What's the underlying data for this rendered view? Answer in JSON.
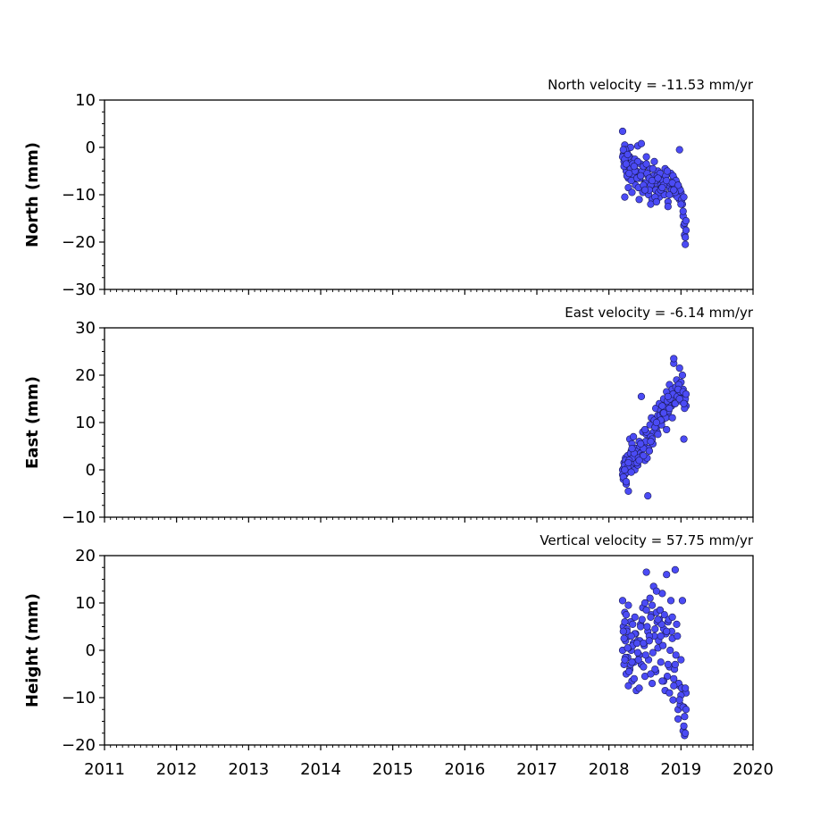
{
  "colors": {
    "marker": "#4b4bf5",
    "marker_edge": "#1a1a55",
    "axes": "#000000",
    "background": "#ffffff"
  },
  "chart_data": [
    {
      "type": "scatter",
      "title": "North velocity = -11.53 mm/yr",
      "xlabel": "",
      "ylabel": "North (mm)",
      "xlim": [
        2011,
        2020
      ],
      "ylim": [
        -30,
        10
      ],
      "yticks": [
        -30,
        -20,
        -10,
        0,
        10
      ],
      "xticks": [
        2011,
        2012,
        2013,
        2014,
        2015,
        2016,
        2017,
        2018,
        2019,
        2020
      ],
      "show_xticklabels": false,
      "velocity_mm_per_yr": -11.53,
      "series": [
        {
          "x": [
            2018.19,
            2018.2,
            2018.21,
            2018.22,
            2018.23,
            2018.24,
            2018.25,
            2018.26,
            2018.27,
            2018.28,
            2018.29,
            2018.3,
            2018.31,
            2018.32,
            2018.33,
            2018.34,
            2018.35,
            2018.36,
            2018.37,
            2018.38,
            2018.4,
            2018.42,
            2018.44,
            2018.45,
            2018.47,
            2018.49,
            2018.5,
            2018.52,
            2018.54,
            2018.55,
            2018.57,
            2018.59,
            2018.6,
            2018.62,
            2018.63,
            2018.65,
            2018.66,
            2018.68,
            2018.7,
            2018.72,
            2018.74,
            2018.76,
            2018.78,
            2018.8,
            2018.82,
            2018.84,
            2018.86,
            2018.88,
            2018.9,
            2018.92,
            2018.94,
            2018.96,
            2018.98,
            2019.0,
            2019.02,
            2019.03,
            2019.04,
            2019.05,
            2019.06,
            2019.07,
            2018.19,
            2018.21,
            2018.23,
            2018.25,
            2018.27,
            2018.3,
            2018.33,
            2018.36,
            2018.4,
            2018.43,
            2018.46,
            2018.48,
            2018.51,
            2018.53,
            2018.56,
            2018.58,
            2018.61,
            2018.64,
            2018.67,
            2018.69,
            2018.71,
            2018.73,
            2018.75,
            2018.77,
            2018.79,
            2018.81,
            2018.83,
            2018.85,
            2018.87,
            2018.89,
            2018.91,
            2018.93,
            2018.95,
            2018.97,
            2018.99,
            2019.01,
            2018.2,
            2018.22,
            2018.24,
            2018.26,
            2018.28,
            2018.31,
            2018.35,
            2018.39,
            2018.41,
            2018.44,
            2018.48,
            2018.52,
            2018.56,
            2018.6,
            2018.64,
            2018.68,
            2018.72,
            2018.76,
            2018.8,
            2018.84,
            2018.88,
            2018.92,
            2018.96,
            2019.0,
            2019.03,
            2019.05,
            2019.06,
            2019.07,
            2018.22,
            2018.27,
            2018.32,
            2018.42,
            2018.5,
            2018.58,
            2018.66,
            2018.74,
            2018.82,
            2018.9,
            2018.98,
            2019.04
          ],
          "y": [
            3.4,
            -1.5,
            -3.0,
            0.5,
            -2.5,
            -5.0,
            -1.0,
            -4.0,
            -6.5,
            -3.5,
            -2.0,
            0.0,
            -5.5,
            -3.0,
            -7.0,
            -4.5,
            -6.0,
            -2.5,
            -8.0,
            -5.0,
            0.3,
            -6.5,
            -3.5,
            0.8,
            -9.5,
            -4.0,
            -7.5,
            -2.0,
            -6.0,
            -10.0,
            -4.5,
            -8.5,
            -11.0,
            -6.0,
            -3.0,
            -9.0,
            -7.5,
            -5.0,
            -10.5,
            -8.0,
            -6.5,
            -9.5,
            -4.5,
            -7.0,
            -11.5,
            -8.5,
            -5.5,
            -9.0,
            -6.5,
            -10.0,
            -7.5,
            -8.0,
            -11.0,
            -9.5,
            -12.0,
            -14.5,
            -16.5,
            -18.5,
            -20.5,
            -17.5,
            -2.0,
            -4.0,
            -0.5,
            -6.0,
            -2.0,
            -4.5,
            -3.5,
            -5.0,
            -3.0,
            -6.5,
            -5.0,
            -4.0,
            -7.5,
            -5.5,
            -6.5,
            -8.0,
            -4.5,
            -7.0,
            -6.0,
            -9.5,
            -5.5,
            -8.5,
            -7.0,
            -10.0,
            -6.0,
            -5.0,
            -8.0,
            -7.5,
            -9.0,
            -6.0,
            -8.5,
            -7.0,
            -10.5,
            -8.5,
            -9.0,
            -11.0,
            -0.5,
            -2.5,
            -3.5,
            -1.5,
            -5.5,
            -7.0,
            -4.0,
            -6.5,
            -8.5,
            -6.0,
            -8.0,
            -3.5,
            -9.0,
            -7.0,
            -10.5,
            -6.5,
            -9.0,
            -8.0,
            -7.0,
            -10.0,
            -7.5,
            -9.5,
            -8.0,
            -12.0,
            -13.5,
            -16.0,
            -19.0,
            -15.5,
            -10.5,
            -8.5,
            -9.5,
            -11.0,
            -9.0,
            -12.0,
            -11.5,
            -8.5,
            -12.5,
            -9.0,
            -0.5,
            -10.5
          ]
        }
      ]
    },
    {
      "type": "scatter",
      "title": "East velocity = -6.14 mm/yr",
      "xlabel": "",
      "ylabel": "East (mm)",
      "xlim": [
        2011,
        2020
      ],
      "ylim": [
        -10,
        30
      ],
      "yticks": [
        -10,
        0,
        10,
        20,
        30
      ],
      "xticks": [
        2011,
        2012,
        2013,
        2014,
        2015,
        2016,
        2017,
        2018,
        2019,
        2020
      ],
      "show_xticklabels": false,
      "velocity_mm_per_yr": -6.14,
      "series": [
        {
          "x": [
            2018.19,
            2018.2,
            2018.21,
            2018.22,
            2018.23,
            2018.24,
            2018.25,
            2018.26,
            2018.27,
            2018.28,
            2018.29,
            2018.3,
            2018.31,
            2018.32,
            2018.33,
            2018.34,
            2018.35,
            2018.36,
            2018.37,
            2018.38,
            2018.4,
            2018.42,
            2018.44,
            2018.45,
            2018.47,
            2018.49,
            2018.5,
            2018.52,
            2018.54,
            2018.55,
            2018.57,
            2018.59,
            2018.6,
            2018.62,
            2018.63,
            2018.65,
            2018.66,
            2018.68,
            2018.7,
            2018.72,
            2018.74,
            2018.76,
            2018.78,
            2018.8,
            2018.82,
            2018.84,
            2018.86,
            2018.88,
            2018.9,
            2018.92,
            2018.94,
            2018.96,
            2018.98,
            2019.0,
            2019.02,
            2019.03,
            2019.04,
            2019.05,
            2019.06,
            2019.07,
            2018.19,
            2018.21,
            2018.23,
            2018.25,
            2018.27,
            2018.3,
            2018.33,
            2018.36,
            2018.4,
            2018.43,
            2018.46,
            2018.48,
            2018.51,
            2018.53,
            2018.56,
            2018.58,
            2018.61,
            2018.64,
            2018.67,
            2018.69,
            2018.71,
            2018.73,
            2018.75,
            2018.77,
            2018.79,
            2018.81,
            2018.83,
            2018.85,
            2018.87,
            2018.89,
            2018.91,
            2018.93,
            2018.95,
            2018.97,
            2018.99,
            2019.01,
            2018.2,
            2018.22,
            2018.24,
            2018.26,
            2018.28,
            2018.31,
            2018.35,
            2018.39,
            2018.41,
            2018.44,
            2018.48,
            2018.52,
            2018.56,
            2018.6,
            2018.64,
            2018.68,
            2018.72,
            2018.76,
            2018.8,
            2018.84,
            2018.88,
            2018.92,
            2018.96,
            2019.0,
            2019.03,
            2019.05,
            2019.06,
            2019.07,
            2018.22,
            2018.27,
            2018.32,
            2018.42,
            2018.5,
            2018.58,
            2018.66,
            2018.74,
            2018.82,
            2018.9,
            2018.98,
            2019.04
          ],
          "y": [
            0.0,
            -2.0,
            1.5,
            -1.0,
            2.5,
            -3.0,
            0.5,
            3.0,
            -4.5,
            1.0,
            6.5,
            2.0,
            4.0,
            5.5,
            0.5,
            7.0,
            3.0,
            1.5,
            4.5,
            2.5,
            4.0,
            6.0,
            3.5,
            15.5,
            8.0,
            5.0,
            2.0,
            7.5,
            -5.5,
            4.5,
            9.5,
            11.0,
            6.5,
            8.0,
            10.5,
            13.0,
            9.0,
            11.5,
            14.0,
            12.5,
            10.5,
            15.0,
            13.5,
            16.5,
            12.0,
            18.0,
            14.0,
            17.0,
            22.5,
            15.5,
            19.0,
            16.5,
            21.5,
            18.5,
            20.0,
            17.0,
            6.5,
            14.5,
            16.0,
            13.5,
            -1.0,
            0.5,
            2.0,
            -0.5,
            1.5,
            3.5,
            2.5,
            0.0,
            1.0,
            5.0,
            3.0,
            4.5,
            6.0,
            2.5,
            4.0,
            7.0,
            5.5,
            9.0,
            8.0,
            10.0,
            11.5,
            9.5,
            12.0,
            13.0,
            11.0,
            14.5,
            12.5,
            15.0,
            13.5,
            16.0,
            14.0,
            17.5,
            15.5,
            18.0,
            16.5,
            15.0,
            -1.5,
            1.0,
            -2.5,
            0.5,
            2.0,
            -0.5,
            3.5,
            1.5,
            2.5,
            5.5,
            3.0,
            8.0,
            4.0,
            6.5,
            9.0,
            7.5,
            10.5,
            12.0,
            8.5,
            13.0,
            11.0,
            14.0,
            17.0,
            14.5,
            16.5,
            13.0,
            15.0,
            16.0,
            0.0,
            1.5,
            4.5,
            2.0,
            8.5,
            6.0,
            10.0,
            13.5,
            15.5,
            23.5,
            15.0,
            14.0
          ]
        }
      ]
    },
    {
      "type": "scatter",
      "title": "Vertical velocity = 57.75 mm/yr",
      "xlabel": "",
      "ylabel": "Height (mm)",
      "xlim": [
        2011,
        2020
      ],
      "ylim": [
        -20,
        20
      ],
      "yticks": [
        -20,
        -10,
        0,
        10,
        20
      ],
      "xticks": [
        2011,
        2012,
        2013,
        2014,
        2015,
        2016,
        2017,
        2018,
        2019,
        2020
      ],
      "show_xticklabels": true,
      "velocity_mm_per_yr": 57.75,
      "series": [
        {
          "x": [
            2018.19,
            2018.2,
            2018.21,
            2018.22,
            2018.23,
            2018.24,
            2018.25,
            2018.26,
            2018.27,
            2018.28,
            2018.29,
            2018.3,
            2018.31,
            2018.32,
            2018.33,
            2018.34,
            2018.35,
            2018.36,
            2018.37,
            2018.38,
            2018.4,
            2018.42,
            2018.44,
            2018.45,
            2018.47,
            2018.49,
            2018.5,
            2018.52,
            2018.54,
            2018.55,
            2018.57,
            2018.59,
            2018.6,
            2018.62,
            2018.63,
            2018.65,
            2018.66,
            2018.68,
            2018.7,
            2018.72,
            2018.74,
            2018.76,
            2018.78,
            2018.8,
            2018.82,
            2018.84,
            2018.86,
            2018.88,
            2018.9,
            2018.92,
            2018.94,
            2018.96,
            2018.98,
            2019.0,
            2019.02,
            2019.03,
            2019.04,
            2019.05,
            2019.06,
            2019.07,
            2018.19,
            2018.21,
            2018.23,
            2018.25,
            2018.27,
            2018.3,
            2018.33,
            2018.36,
            2018.4,
            2018.43,
            2018.46,
            2018.48,
            2018.51,
            2018.53,
            2018.56,
            2018.58,
            2018.61,
            2018.64,
            2018.67,
            2018.69,
            2018.71,
            2018.73,
            2018.75,
            2018.77,
            2018.79,
            2018.81,
            2018.83,
            2018.85,
            2018.87,
            2018.89,
            2018.91,
            2018.93,
            2018.95,
            2018.97,
            2018.99,
            2019.01,
            2018.2,
            2018.22,
            2018.24,
            2018.26,
            2018.28,
            2018.31,
            2018.35,
            2018.39,
            2018.41,
            2018.44,
            2018.48,
            2018.52,
            2018.56,
            2018.6,
            2018.64,
            2018.68,
            2018.72,
            2018.76,
            2018.8,
            2018.84,
            2018.88,
            2018.92,
            2018.96,
            2019.0,
            2019.03,
            2019.05,
            2019.06,
            2019.07,
            2018.22,
            2018.27,
            2018.32,
            2018.42,
            2018.5,
            2018.58,
            2018.66,
            2018.74,
            2018.82,
            2018.9,
            2018.98,
            2019.04
          ],
          "y": [
            10.5,
            5.0,
            -3.0,
            8.0,
            2.0,
            -5.0,
            4.5,
            -1.5,
            9.5,
            3.0,
            -4.0,
            6.0,
            0.0,
            -6.5,
            5.5,
            1.5,
            -2.5,
            7.0,
            3.5,
            -8.5,
            2.0,
            -1.0,
            5.5,
            -3.0,
            9.0,
            1.0,
            -5.5,
            16.5,
            4.0,
            -2.0,
            11.0,
            7.5,
            -7.0,
            13.5,
            3.0,
            -4.5,
            8.0,
            0.5,
            6.5,
            -2.5,
            12.0,
            4.5,
            -8.5,
            16.0,
            6.0,
            -3.5,
            10.5,
            2.5,
            -6.0,
            17.0,
            5.5,
            -12.5,
            -7.5,
            -2.0,
            10.5,
            -17.0,
            -12.0,
            -18.0,
            -17.5,
            -9.0,
            0.0,
            2.5,
            -1.5,
            4.0,
            0.5,
            -3.0,
            1.0,
            3.5,
            -0.5,
            2.0,
            6.5,
            1.5,
            -1.0,
            5.0,
            3.0,
            7.0,
            -0.5,
            4.5,
            6.0,
            2.0,
            8.5,
            5.5,
            1.0,
            7.5,
            3.5,
            -5.5,
            6.5,
            0.0,
            4.0,
            -10.5,
            -4.0,
            -1.0,
            3.0,
            -7.0,
            -11.5,
            -8.0,
            4.0,
            -2.0,
            7.5,
            0.5,
            -4.5,
            3.0,
            -6.0,
            1.5,
            -2.0,
            5.0,
            -3.5,
            8.5,
            2.0,
            9.5,
            -4.0,
            6.5,
            3.0,
            -6.5,
            4.0,
            -9.0,
            7.0,
            -3.0,
            -14.5,
            -9.5,
            -12.0,
            -14.0,
            -8.0,
            -12.5,
            6.0,
            -7.5,
            -2.5,
            -8.0,
            10.0,
            -5.0,
            12.5,
            -6.5,
            -3.0,
            -7.5,
            -10.5,
            -16.0
          ]
        }
      ]
    }
  ]
}
